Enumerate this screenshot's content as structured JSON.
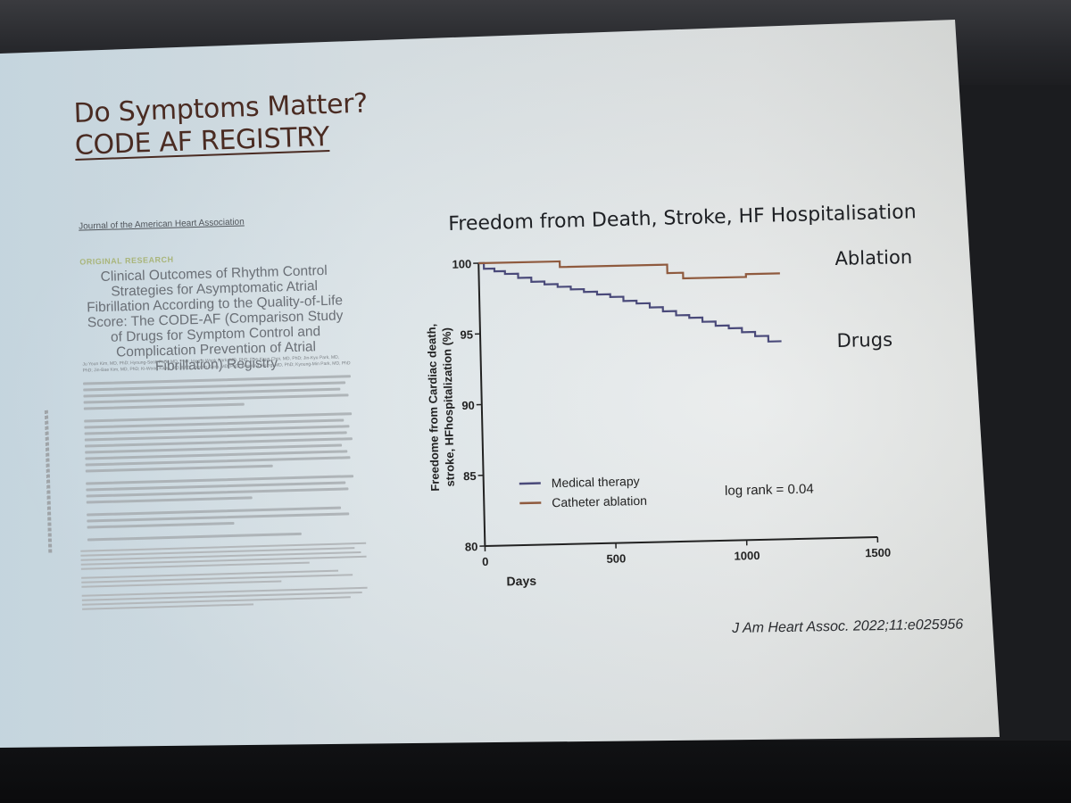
{
  "slide": {
    "title_line1": "Do Symptoms Matter?",
    "title_line2": "CODE AF REGISTRY",
    "paper": {
      "journal": "Journal of the American Heart Association",
      "section": "ORIGINAL RESEARCH",
      "title": "Clinical Outcomes of Rhythm Control Strategies for Asymptomatic Atrial Fibrillation According to the Quality-of-Life Score: The CODE-AF (Comparison Study of Drugs for Symptom Control and Complication Prevention of Atrial Fibrillation) Registry",
      "authors": "Ju Youn Kim, MD, PhD; Hyoung-Seob Park, MD, PhD; Hyung Wook Park, MD, PhD; Eue-Keun Choi, MD, PhD; Jin-Kyu Park, MD, PhD; Jin-Bae Kim, MD, PhD; Ki-Woon Kang, MD, PhD; Jaemin Shim, MD, PhD; Boyoung Joung, MD, PhD; Kyoung-Min Park, MD, PhD"
    },
    "citation": "J Am Heart Assoc. 2022;11:e025956"
  },
  "chart_data": {
    "type": "line",
    "title": "Freedom from Death, Stroke, HF Hospitalisation",
    "xlabel": "Days",
    "ylabel": "Freedome from Cardiac death, stroke, HFhospitalization (%)",
    "xlim": [
      0,
      1500
    ],
    "ylim": [
      80,
      100
    ],
    "xticks": [
      "0",
      "500",
      "1000",
      "1500"
    ],
    "yticks": [
      "80",
      "85",
      "90",
      "95",
      "100"
    ],
    "legend": [
      "Medical therapy",
      "Catheter ablation"
    ],
    "annotation": "log rank = 0.04",
    "series": [
      {
        "name": "Medical therapy",
        "label": "Drugs",
        "color": "#4a4a7a",
        "x": [
          0,
          20,
          60,
          100,
          150,
          200,
          250,
          300,
          350,
          400,
          450,
          500,
          550,
          600,
          650,
          700,
          750,
          800,
          850,
          900,
          950,
          1000,
          1050,
          1100,
          1150
        ],
        "y": [
          100,
          99.6,
          99.4,
          99.2,
          98.9,
          98.6,
          98.4,
          98.2,
          98.0,
          97.8,
          97.6,
          97.4,
          97.1,
          96.9,
          96.6,
          96.3,
          96.0,
          95.8,
          95.5,
          95.2,
          95.0,
          94.7,
          94.4,
          94.0,
          94.0
        ]
      },
      {
        "name": "Catheter ablation",
        "label": "Ablation",
        "color": "#8f5a3e",
        "x": [
          0,
          300,
          310,
          700,
          720,
          760,
          780,
          1000,
          1020,
          1150
        ],
        "y": [
          100,
          100,
          99.6,
          99.6,
          99.0,
          99.0,
          98.6,
          98.6,
          98.8,
          98.8
        ]
      }
    ]
  }
}
